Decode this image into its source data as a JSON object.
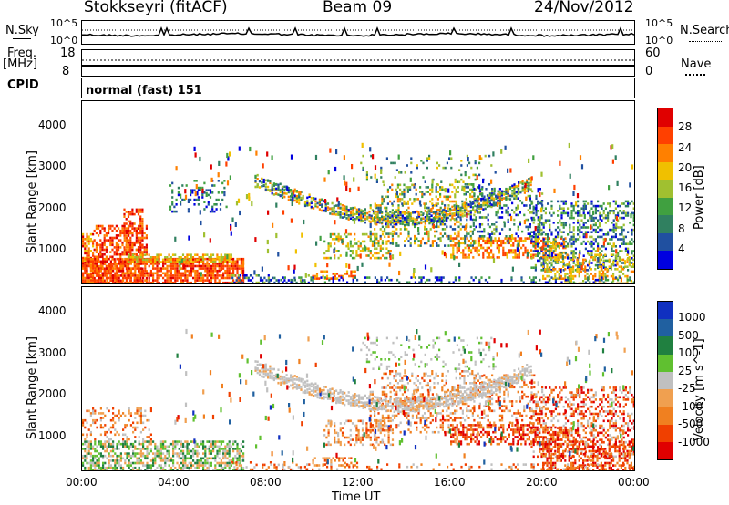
{
  "header": {
    "station": "Stokkseyri (fitACF)",
    "beam": "Beam 09",
    "date": "24/Nov/2012"
  },
  "strip": {
    "nsky_label": "N.Sky",
    "nsky_ticks": [
      "10^5",
      "10^0"
    ],
    "nsearch_label": "N.Search",
    "nsearch_ticks": [
      "10^5",
      "10^0"
    ],
    "freq_label_1": "Freq.",
    "freq_label_2": "[MHz]",
    "freq_ticks": [
      "18",
      "8"
    ],
    "nave_label": "Nave",
    "nave_ticks": [
      "60",
      "0"
    ],
    "cpid_label": "CPID",
    "cpid_value": "normal (fast) 151"
  },
  "chart_data": [
    {
      "type": "heatmap",
      "name": "power-panel",
      "ylabel": "Slant Range [km]",
      "xlabel": "",
      "xlim": [
        0,
        24
      ],
      "ylim": [
        180,
        4600
      ],
      "yticks": [
        1000,
        2000,
        3000,
        4000
      ],
      "colorbar": {
        "label": "Power [dB]",
        "ticks": [
          "28",
          "24",
          "20",
          "16",
          "12",
          "8",
          "4"
        ],
        "colors": [
          "#e00000",
          "#ff4000",
          "#ff8000",
          "#f0c000",
          "#a0c030",
          "#40a040",
          "#308060",
          "#2050a0",
          "#0000e0"
        ]
      }
    },
    {
      "type": "heatmap",
      "name": "velocity-panel",
      "ylabel": "Slant Range [km]",
      "xlabel": "Time UT",
      "xlim": [
        0,
        24
      ],
      "ylim": [
        180,
        4600
      ],
      "yticks": [
        1000,
        2000,
        3000,
        4000
      ],
      "xticks": [
        "00:00",
        "04:00",
        "08:00",
        "12:00",
        "16:00",
        "20:00",
        "00:00"
      ],
      "colorbar": {
        "label": "Velocity [m s^-1]",
        "ticks": [
          "1000",
          "500",
          "100",
          "25",
          "-25",
          "-100",
          "-500",
          "-1000"
        ],
        "colors": [
          "#1030c0",
          "#2060a0",
          "#208040",
          "#60c030",
          "#c0c0c0",
          "#f0a050",
          "#f08020",
          "#f04000",
          "#e00000"
        ]
      }
    }
  ]
}
